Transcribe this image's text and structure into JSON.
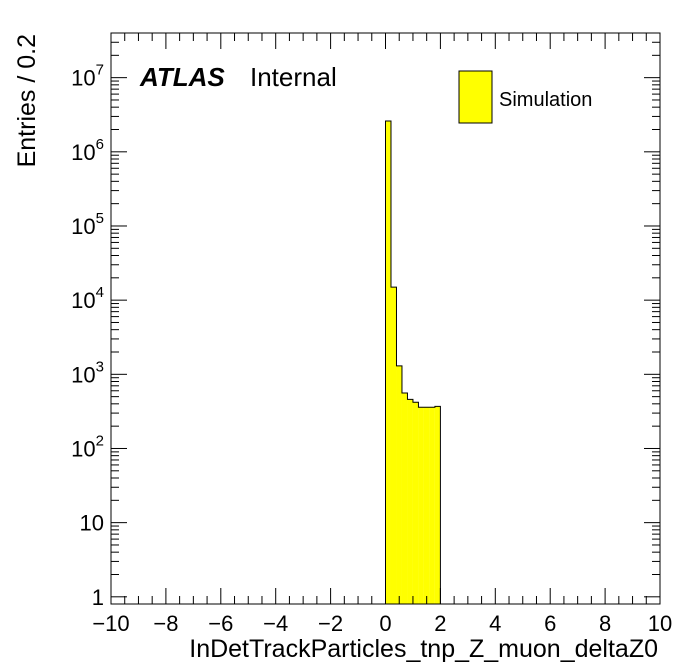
{
  "chart_data": {
    "type": "bar",
    "style": "histogram",
    "xlabel": "InDetTrackParticles_tnp_Z_muon_deltaZ0",
    "ylabel": "Entries / 0.2",
    "xlim": [
      -10,
      10
    ],
    "ylim": [
      0.8,
      40000000
    ],
    "yscale": "log",
    "grid": false,
    "bin_width": 0.2,
    "x_ticks": [
      "−10",
      "−8",
      "−6",
      "−4",
      "−2",
      "0",
      "2",
      "4",
      "6",
      "8",
      "10"
    ],
    "y_ticks": [
      {
        "base": "1",
        "exp": ""
      },
      {
        "base": "10",
        "exp": ""
      },
      {
        "base": "10",
        "exp": "2"
      },
      {
        "base": "10",
        "exp": "3"
      },
      {
        "base": "10",
        "exp": "4"
      },
      {
        "base": "10",
        "exp": "5"
      },
      {
        "base": "10",
        "exp": "6"
      },
      {
        "base": "10",
        "exp": "7"
      }
    ],
    "series": [
      {
        "name": "Simulation",
        "color": "#ffff00",
        "edges": [
          0.0,
          0.2,
          0.4,
          0.6,
          0.8,
          1.0,
          1.2,
          1.4,
          1.6,
          1.8,
          2.0
        ],
        "values": [
          2600000,
          15000,
          1300,
          560,
          460,
          420,
          360,
          360,
          360,
          370
        ]
      }
    ],
    "legend_position": "top-right",
    "label_atlas": "ATLAS",
    "label_status": "Internal"
  }
}
